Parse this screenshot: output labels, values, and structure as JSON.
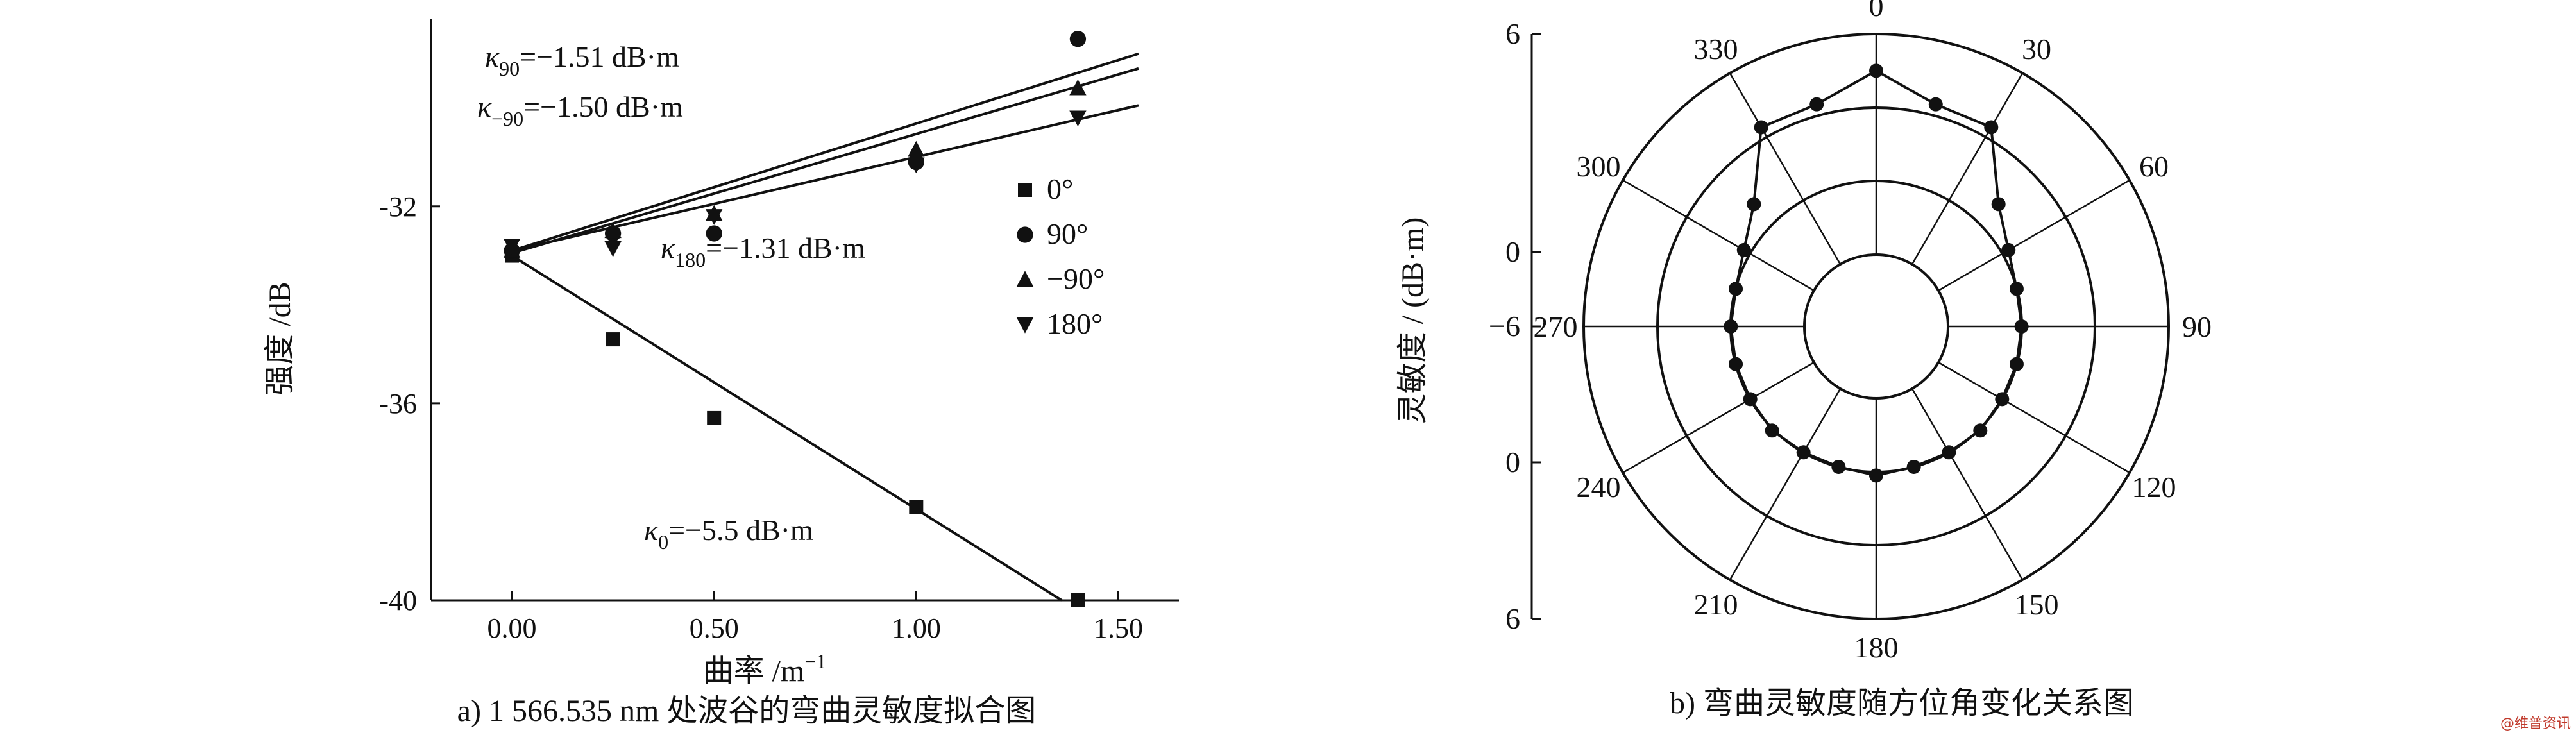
{
  "chart_data": [
    {
      "type": "scatter",
      "panel_label": "a)",
      "caption": "1 566.535 nm 处波谷的弯曲灵敏度拟合图",
      "xlabel": "曲率 /m",
      "xlabel_sup": "−1",
      "ylabel": "强度 /dB",
      "xlim": [
        -0.2,
        1.65
      ],
      "ylim": [
        -40,
        -28.2
      ],
      "x_ticks": [
        "0.00",
        "0.50",
        "1.00",
        "1.50"
      ],
      "x_tick_values": [
        0,
        0.5,
        1.0,
        1.5
      ],
      "y_ticks": [
        "-32",
        "-36",
        "-40"
      ],
      "y_tick_values": [
        -32,
        -36,
        -40
      ],
      "legend": [
        {
          "marker": "square",
          "label": "0°"
        },
        {
          "marker": "circle",
          "label": "90°"
        },
        {
          "marker": "triangle-up",
          "label": "−90°"
        },
        {
          "marker": "triangle-down",
          "label": "180°"
        }
      ],
      "series": [
        {
          "name": "0°",
          "marker": "square",
          "x": [
            0.0,
            0.25,
            0.5,
            1.0,
            1.4
          ],
          "y": [
            -33.0,
            -34.7,
            -36.3,
            -38.1,
            -40.0
          ]
        },
        {
          "name": "90°",
          "marker": "circle",
          "x": [
            0.0,
            0.25,
            0.5,
            1.0,
            1.4
          ],
          "y": [
            -32.9,
            -32.55,
            -32.55,
            -31.1,
            -28.6
          ]
        },
        {
          "name": "−90°",
          "marker": "triangle-up",
          "x": [
            0.0,
            0.25,
            0.5,
            1.0,
            1.4
          ],
          "y": [
            -32.9,
            -32.5,
            -32.15,
            -30.85,
            -29.6
          ]
        },
        {
          "name": "180°",
          "marker": "triangle-down",
          "x": [
            0.0,
            0.25,
            0.5,
            1.0,
            1.4
          ],
          "y": [
            -32.8,
            -32.85,
            -32.2,
            -31.15,
            -30.2
          ]
        }
      ],
      "fit_lines": [
        {
          "x": [
            0.0,
            1.36
          ],
          "y": [
            -33.0,
            -40.0
          ]
        },
        {
          "x": [
            0.0,
            1.55
          ],
          "y": [
            -32.9,
            -28.9
          ]
        },
        {
          "x": [
            0.0,
            1.55
          ],
          "y": [
            -32.95,
            -29.2
          ]
        },
        {
          "x": [
            0.0,
            1.55
          ],
          "y": [
            -32.9,
            -29.95
          ]
        }
      ],
      "annotations": [
        {
          "greek": "κ",
          "sub": "90",
          "text": "=−1.51 dB·m"
        },
        {
          "greek": "κ",
          "sub": "−90",
          "text": "=−1.50 dB·m"
        },
        {
          "greek": "κ",
          "sub": "180",
          "text": "=−1.31 dB·m"
        },
        {
          "greek": "κ",
          "sub": "0",
          "text": "=−5.5 dB·m"
        }
      ]
    },
    {
      "type": "polar",
      "panel_label": "b)",
      "caption": "弯曲灵敏度随方位角变化关系图",
      "ylabel": "灵敏度 / (dB·m)",
      "radial_ticks": [
        "6",
        "0",
        "−6",
        "0",
        "6"
      ],
      "radial_tick_values": [
        6,
        0,
        -6,
        0,
        6
      ],
      "r_range": [
        -6,
        6
      ],
      "angle_labels": [
        "0",
        "30",
        "60",
        "90",
        "120",
        "150",
        "180",
        "210",
        "240",
        "270",
        "300",
        "330"
      ],
      "angle_values": [
        0,
        30,
        60,
        90,
        120,
        150,
        180,
        210,
        240,
        270,
        300,
        330
      ],
      "points": {
        "angle_deg": [
          0,
          15,
          30,
          45,
          60,
          75,
          90,
          105,
          120,
          135,
          150,
          165,
          180,
          195,
          210,
          225,
          240,
          255,
          270,
          285,
          300,
          315,
          330,
          345
        ],
        "value": [
          4.0,
          2.6,
          2.6,
          -0.5,
          -1.6,
          -2.0,
          -2.0,
          -2.0,
          -2.0,
          -1.9,
          -2.0,
          -2.0,
          -1.8,
          -2.0,
          -2.0,
          -1.9,
          -2.0,
          -2.0,
          -2.0,
          -2.0,
          -1.6,
          -0.5,
          2.6,
          2.6
        ]
      }
    }
  ],
  "watermark": "@维普资讯"
}
